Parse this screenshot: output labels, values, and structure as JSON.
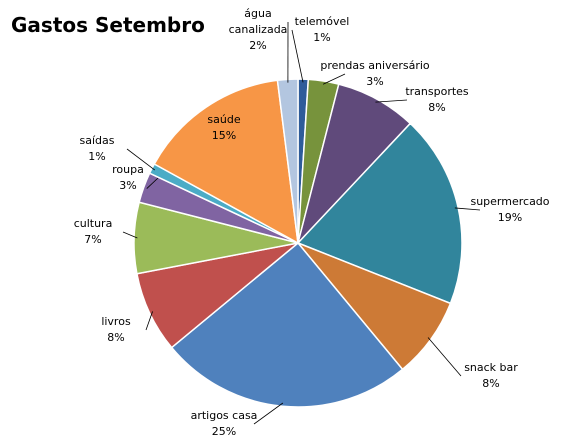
{
  "chart_data": {
    "type": "pie",
    "title": "Gastos Setembro",
    "categories": [
      "telemóvel",
      "prendas aniversário",
      "transportes",
      "supermercado",
      "snack bar",
      "artigos casa",
      "livros",
      "cultura",
      "roupa",
      "saídas",
      "saúde",
      "água canalizada"
    ],
    "values": [
      1,
      3,
      8,
      19,
      8,
      25,
      8,
      7,
      3,
      1,
      15,
      2
    ],
    "value_labels": [
      "1%",
      "3%",
      "8%",
      "19%",
      "8%",
      "25%",
      "8%",
      "7%",
      "3%",
      "1%",
      "15%",
      "2%"
    ],
    "colors": [
      "#2e5c9a",
      "#77933c",
      "#604a7b",
      "#31859c",
      "#cd7a36",
      "#4f81bd",
      "#c0504d",
      "#9bbb59",
      "#8064a2",
      "#4bacc6",
      "#f79646",
      "#b3c6e0"
    ]
  }
}
